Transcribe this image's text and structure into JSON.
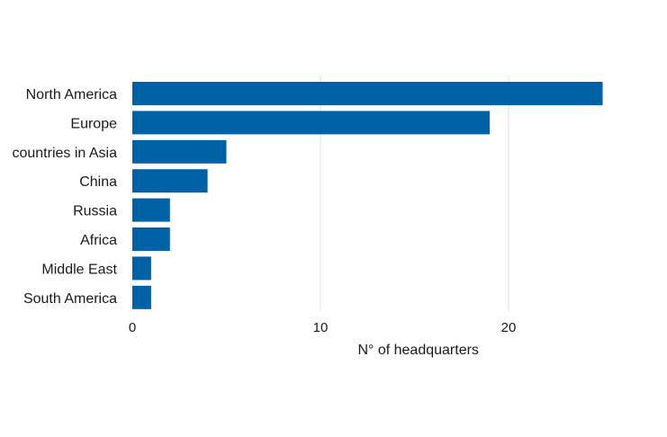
{
  "chart_data": {
    "type": "bar",
    "orientation": "horizontal",
    "categories": [
      "North America",
      "Europe",
      "countries in Asia",
      "China",
      "Russia",
      "Africa",
      "Middle East",
      "South America"
    ],
    "values": [
      25,
      19,
      5,
      4,
      2,
      2,
      1,
      1
    ],
    "title": "",
    "xlabel": "N° of headquarters",
    "ylabel": "",
    "xlim": [
      0,
      25
    ],
    "xticks": [
      0,
      10,
      20
    ],
    "xtick_labels": [
      "0",
      "10",
      "20"
    ],
    "grid": true,
    "bar_color": "#0062a6",
    "grid_color": "#e3e3e3"
  }
}
